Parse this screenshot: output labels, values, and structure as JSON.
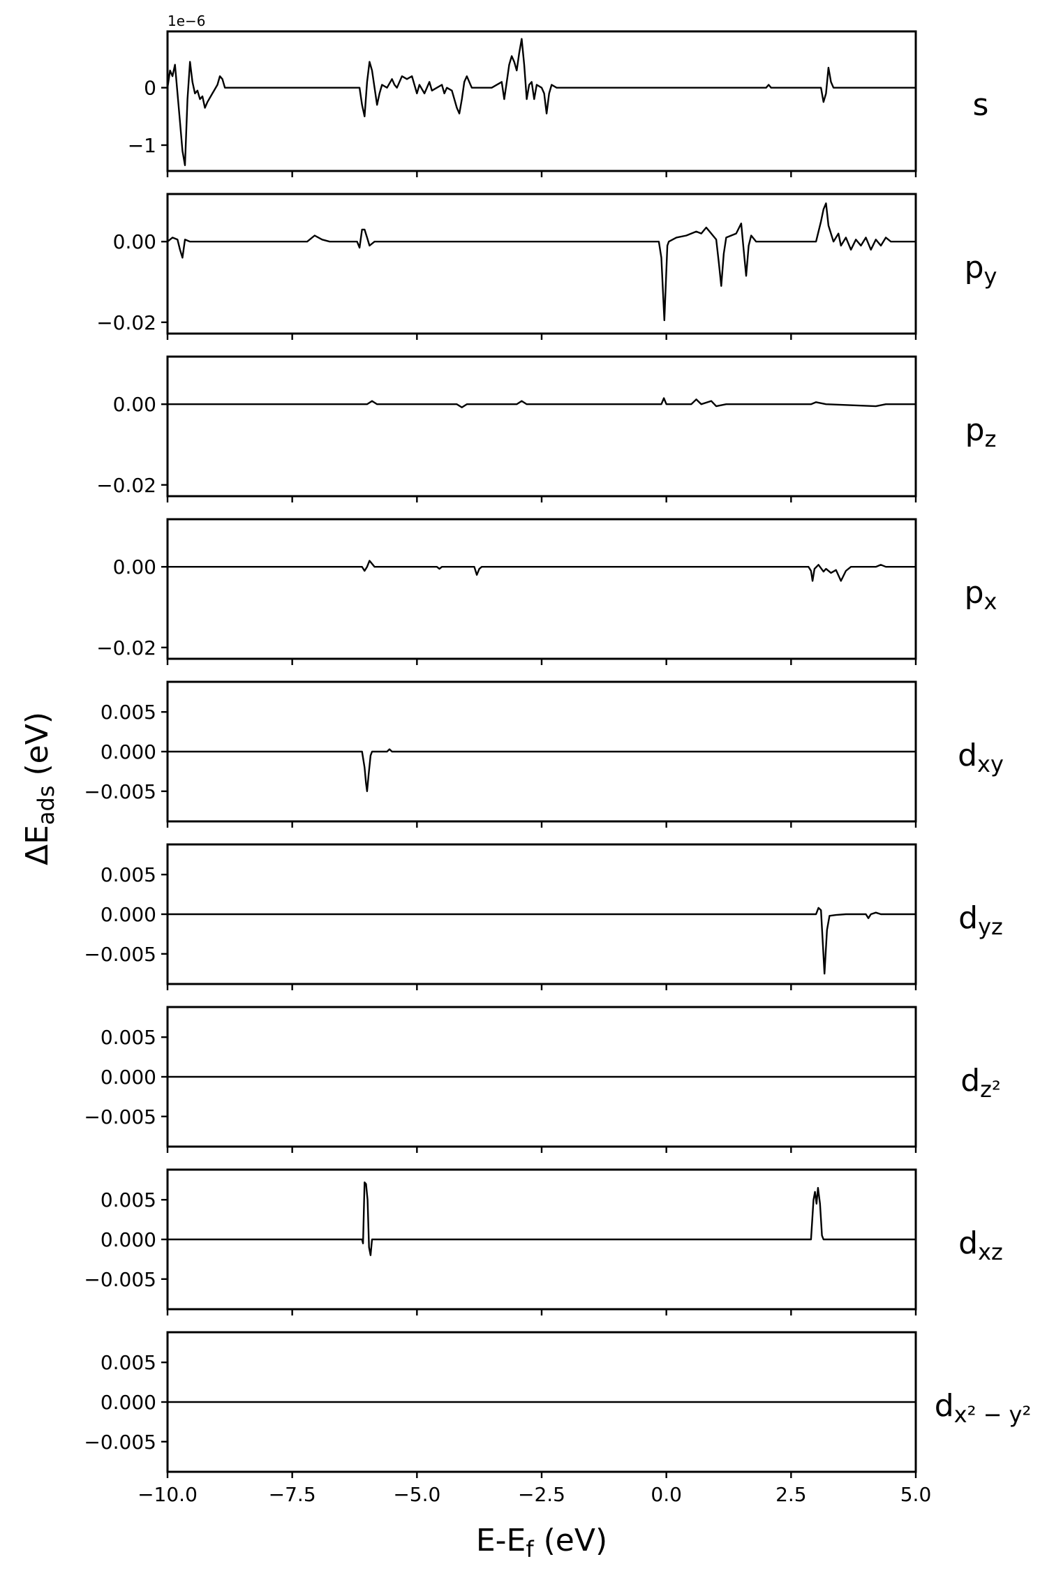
{
  "chart_data": {
    "type": "line",
    "layout": "stacked-subplots",
    "shared_x": true,
    "xlabel": {
      "main": "E-E",
      "sub": "f",
      "tail": " (eV)"
    },
    "ylabel": {
      "main": "ΔE",
      "sub": "ads",
      "tail": " (eV)"
    },
    "xlim": [
      -10.0,
      5.0
    ],
    "xticks": [
      -10.0,
      -7.5,
      -5.0,
      -2.5,
      0.0,
      2.5,
      5.0
    ],
    "xtick_labels": [
      "−10.0",
      "−7.5",
      "−5.0",
      "−2.5",
      "0.0",
      "2.5",
      "5.0"
    ],
    "line_color": "#000000",
    "panels": [
      {
        "label": {
          "main": "s",
          "sub": ""
        },
        "offset_text": "1e−6",
        "ylim": [
          -1.45,
          0.98
        ],
        "yticks": [
          0,
          -1
        ],
        "ytick_labels": [
          "0",
          "−1"
        ],
        "points": [
          [
            -10.0,
            0
          ],
          [
            -9.95,
            0.3
          ],
          [
            -9.9,
            0.2
          ],
          [
            -9.85,
            0.4
          ],
          [
            -9.8,
            -0.1
          ],
          [
            -9.75,
            -0.6
          ],
          [
            -9.7,
            -1.1
          ],
          [
            -9.65,
            -1.35
          ],
          [
            -9.6,
            -0.2
          ],
          [
            -9.55,
            0.45
          ],
          [
            -9.5,
            0.1
          ],
          [
            -9.45,
            -0.1
          ],
          [
            -9.4,
            -0.05
          ],
          [
            -9.35,
            -0.2
          ],
          [
            -9.3,
            -0.15
          ],
          [
            -9.25,
            -0.35
          ],
          [
            -9.2,
            -0.25
          ],
          [
            -9.1,
            -0.1
          ],
          [
            -9.0,
            0.05
          ],
          [
            -8.95,
            0.2
          ],
          [
            -8.9,
            0.15
          ],
          [
            -8.85,
            0
          ],
          [
            -8.5,
            0
          ],
          [
            -7.0,
            0
          ],
          [
            -6.15,
            0
          ],
          [
            -6.1,
            -0.3
          ],
          [
            -6.05,
            -0.5
          ],
          [
            -6.0,
            0.1
          ],
          [
            -5.95,
            0.45
          ],
          [
            -5.9,
            0.3
          ],
          [
            -5.85,
            0
          ],
          [
            -5.8,
            -0.3
          ],
          [
            -5.75,
            -0.1
          ],
          [
            -5.7,
            0.05
          ],
          [
            -5.6,
            0
          ],
          [
            -5.5,
            0.15
          ],
          [
            -5.45,
            0.05
          ],
          [
            -5.4,
            0
          ],
          [
            -5.3,
            0.2
          ],
          [
            -5.2,
            0.15
          ],
          [
            -5.1,
            0.2
          ],
          [
            -5.0,
            -0.1
          ],
          [
            -4.95,
            0.05
          ],
          [
            -4.85,
            -0.1
          ],
          [
            -4.75,
            0.1
          ],
          [
            -4.7,
            -0.05
          ],
          [
            -4.6,
            0
          ],
          [
            -4.5,
            0.05
          ],
          [
            -4.45,
            -0.1
          ],
          [
            -4.4,
            0
          ],
          [
            -4.3,
            -0.05
          ],
          [
            -4.2,
            -0.35
          ],
          [
            -4.15,
            -0.45
          ],
          [
            -4.1,
            -0.2
          ],
          [
            -4.05,
            0.1
          ],
          [
            -4.0,
            0.2
          ],
          [
            -3.9,
            0
          ],
          [
            -3.5,
            0
          ],
          [
            -3.3,
            0.1
          ],
          [
            -3.25,
            -0.2
          ],
          [
            -3.2,
            0.1
          ],
          [
            -3.15,
            0.4
          ],
          [
            -3.1,
            0.55
          ],
          [
            -3.05,
            0.45
          ],
          [
            -3.0,
            0.3
          ],
          [
            -2.95,
            0.6
          ],
          [
            -2.9,
            0.85
          ],
          [
            -2.85,
            0.4
          ],
          [
            -2.8,
            -0.2
          ],
          [
            -2.75,
            0.05
          ],
          [
            -2.7,
            0.1
          ],
          [
            -2.65,
            -0.2
          ],
          [
            -2.6,
            0.05
          ],
          [
            -2.5,
            0
          ],
          [
            -2.45,
            -0.1
          ],
          [
            -2.4,
            -0.45
          ],
          [
            -2.35,
            -0.1
          ],
          [
            -2.3,
            0.05
          ],
          [
            -2.2,
            0
          ],
          [
            0.0,
            0
          ],
          [
            2.0,
            0
          ],
          [
            2.05,
            0.05
          ],
          [
            2.1,
            0
          ],
          [
            3.1,
            0
          ],
          [
            3.15,
            -0.25
          ],
          [
            3.2,
            -0.1
          ],
          [
            3.25,
            0.35
          ],
          [
            3.3,
            0.1
          ],
          [
            3.35,
            0
          ],
          [
            5.0,
            0
          ]
        ]
      },
      {
        "label": {
          "main": "p",
          "sub": "y"
        },
        "offset_text": "",
        "ylim": [
          -0.0228,
          0.0118
        ],
        "yticks": [
          0.0,
          -0.02
        ],
        "ytick_labels": [
          "0.00",
          "−0.02"
        ],
        "points": [
          [
            -10.0,
            0
          ],
          [
            -9.9,
            0.001
          ],
          [
            -9.8,
            0.0005
          ],
          [
            -9.75,
            -0.002
          ],
          [
            -9.7,
            -0.004
          ],
          [
            -9.65,
            0.0005
          ],
          [
            -9.55,
            0
          ],
          [
            -9.0,
            0
          ],
          [
            -7.2,
            0
          ],
          [
            -7.05,
            0.0015
          ],
          [
            -6.9,
            0.0005
          ],
          [
            -6.75,
            0
          ],
          [
            -6.2,
            0
          ],
          [
            -6.15,
            -0.0015
          ],
          [
            -6.1,
            0.003
          ],
          [
            -6.05,
            0.003
          ],
          [
            -6.0,
            0.001
          ],
          [
            -5.95,
            -0.001
          ],
          [
            -5.85,
            0
          ],
          [
            -0.15,
            0
          ],
          [
            -0.1,
            -0.004
          ],
          [
            -0.07,
            -0.012
          ],
          [
            -0.04,
            -0.0195
          ],
          [
            -0.01,
            -0.01
          ],
          [
            0.02,
            -0.001
          ],
          [
            0.05,
            0
          ],
          [
            0.2,
            0.001
          ],
          [
            0.4,
            0.0015
          ],
          [
            0.6,
            0.0025
          ],
          [
            0.7,
            0.002
          ],
          [
            0.8,
            0.0035
          ],
          [
            0.9,
            0.002
          ],
          [
            1.0,
            0.0005
          ],
          [
            1.05,
            -0.005
          ],
          [
            1.1,
            -0.011
          ],
          [
            1.15,
            -0.003
          ],
          [
            1.2,
            0.001
          ],
          [
            1.3,
            0.0015
          ],
          [
            1.4,
            0.002
          ],
          [
            1.5,
            0.0045
          ],
          [
            1.55,
            -0.002
          ],
          [
            1.6,
            -0.0085
          ],
          [
            1.65,
            -0.001
          ],
          [
            1.7,
            0.0015
          ],
          [
            1.8,
            0
          ],
          [
            3.0,
            0
          ],
          [
            3.1,
            0.005
          ],
          [
            3.15,
            0.008
          ],
          [
            3.2,
            0.0095
          ],
          [
            3.25,
            0.004
          ],
          [
            3.35,
            0
          ],
          [
            3.45,
            0.002
          ],
          [
            3.5,
            -0.001
          ],
          [
            3.6,
            0.001
          ],
          [
            3.7,
            -0.002
          ],
          [
            3.8,
            0.0005
          ],
          [
            3.9,
            -0.001
          ],
          [
            4.0,
            0.001
          ],
          [
            4.1,
            -0.002
          ],
          [
            4.2,
            0.0005
          ],
          [
            4.3,
            -0.001
          ],
          [
            4.4,
            0.001
          ],
          [
            4.5,
            0
          ],
          [
            5.0,
            0
          ]
        ]
      },
      {
        "label": {
          "main": "p",
          "sub": "z"
        },
        "offset_text": "",
        "ylim": [
          -0.0228,
          0.0118
        ],
        "yticks": [
          0.0,
          -0.02
        ],
        "ytick_labels": [
          "0.00",
          "−0.02"
        ],
        "points": [
          [
            -10.0,
            0
          ],
          [
            -9.0,
            0
          ],
          [
            -6.0,
            0
          ],
          [
            -5.9,
            0.0008
          ],
          [
            -5.8,
            0
          ],
          [
            -4.2,
            0
          ],
          [
            -4.1,
            -0.0008
          ],
          [
            -4.0,
            0
          ],
          [
            -3.0,
            0
          ],
          [
            -2.9,
            0.0008
          ],
          [
            -2.8,
            0
          ],
          [
            -0.1,
            0
          ],
          [
            -0.05,
            0.0015
          ],
          [
            0.0,
            0
          ],
          [
            0.5,
            0
          ],
          [
            0.6,
            0.0012
          ],
          [
            0.7,
            0
          ],
          [
            0.9,
            0.0008
          ],
          [
            1.0,
            -0.0005
          ],
          [
            1.2,
            0
          ],
          [
            2.9,
            0
          ],
          [
            3.0,
            0.0005
          ],
          [
            3.2,
            0
          ],
          [
            4.2,
            -0.0005
          ],
          [
            4.4,
            0
          ],
          [
            5.0,
            0
          ]
        ]
      },
      {
        "label": {
          "main": "p",
          "sub": "x"
        },
        "offset_text": "",
        "ylim": [
          -0.0228,
          0.0118
        ],
        "yticks": [
          0.0,
          -0.02
        ],
        "ytick_labels": [
          "0.00",
          "−0.02"
        ],
        "points": [
          [
            -10.0,
            0
          ],
          [
            -6.1,
            0
          ],
          [
            -6.05,
            -0.001
          ],
          [
            -6.0,
            0
          ],
          [
            -5.95,
            0.0015
          ],
          [
            -5.85,
            0
          ],
          [
            -4.6,
            0
          ],
          [
            -4.55,
            -0.0005
          ],
          [
            -4.5,
            0
          ],
          [
            -3.85,
            0
          ],
          [
            -3.8,
            -0.002
          ],
          [
            -3.75,
            -0.0005
          ],
          [
            -3.7,
            0
          ],
          [
            2.85,
            0
          ],
          [
            2.9,
            -0.001
          ],
          [
            2.93,
            -0.0035
          ],
          [
            2.97,
            -0.0005
          ],
          [
            3.05,
            0.0005
          ],
          [
            3.15,
            -0.0012
          ],
          [
            3.2,
            -0.0005
          ],
          [
            3.3,
            -0.0015
          ],
          [
            3.4,
            -0.0008
          ],
          [
            3.5,
            -0.0035
          ],
          [
            3.6,
            -0.001
          ],
          [
            3.7,
            0
          ],
          [
            4.2,
            0
          ],
          [
            4.3,
            0.0005
          ],
          [
            4.4,
            0
          ],
          [
            5.0,
            0
          ]
        ]
      },
      {
        "label": {
          "main": "d",
          "sub": "xy"
        },
        "offset_text": "",
        "ylim": [
          -0.0088,
          0.0088
        ],
        "yticks": [
          0.005,
          0.0,
          -0.005
        ],
        "ytick_labels": [
          "0.005",
          "0.000",
          "−0.005"
        ],
        "points": [
          [
            -10.0,
            0
          ],
          [
            -6.1,
            0
          ],
          [
            -6.05,
            -0.002
          ],
          [
            -6.02,
            -0.004
          ],
          [
            -6.0,
            -0.005
          ],
          [
            -5.97,
            -0.003
          ],
          [
            -5.93,
            -0.0005
          ],
          [
            -5.9,
            0
          ],
          [
            -5.6,
            0
          ],
          [
            -5.55,
            0.0003
          ],
          [
            -5.5,
            0
          ],
          [
            5.0,
            0
          ]
        ]
      },
      {
        "label": {
          "main": "d",
          "sub": "yz"
        },
        "offset_text": "",
        "ylim": [
          -0.0088,
          0.0088
        ],
        "yticks": [
          0.005,
          0.0,
          -0.005
        ],
        "ytick_labels": [
          "0.005",
          "0.000",
          "−0.005"
        ],
        "points": [
          [
            -10.0,
            0
          ],
          [
            3.0,
            0
          ],
          [
            3.05,
            0.0008
          ],
          [
            3.1,
            0.0005
          ],
          [
            3.13,
            -0.003
          ],
          [
            3.17,
            -0.0075
          ],
          [
            3.22,
            -0.002
          ],
          [
            3.27,
            -0.0002
          ],
          [
            3.4,
            -0.0001
          ],
          [
            3.6,
            0
          ],
          [
            4.0,
            0
          ],
          [
            4.05,
            -0.0005
          ],
          [
            4.1,
            0
          ],
          [
            4.2,
            0.0002
          ],
          [
            4.3,
            0
          ],
          [
            5.0,
            0
          ]
        ]
      },
      {
        "label": {
          "main": "d",
          "sub": "z²"
        },
        "offset_text": "",
        "ylim": [
          -0.0088,
          0.0088
        ],
        "yticks": [
          0.005,
          0.0,
          -0.005
        ],
        "ytick_labels": [
          "0.005",
          "0.000",
          "−0.005"
        ],
        "points": [
          [
            -10.0,
            0
          ],
          [
            5.0,
            0
          ]
        ]
      },
      {
        "label": {
          "main": "d",
          "sub": "xz"
        },
        "offset_text": "",
        "ylim": [
          -0.0088,
          0.0088
        ],
        "yticks": [
          0.005,
          0.0,
          -0.005
        ],
        "ytick_labels": [
          "0.005",
          "0.000",
          "−0.005"
        ],
        "points": [
          [
            -10.0,
            0
          ],
          [
            -6.1,
            0
          ],
          [
            -6.08,
            -0.0005
          ],
          [
            -6.05,
            0.0072
          ],
          [
            -6.02,
            0.007
          ],
          [
            -5.99,
            0.005
          ],
          [
            -5.96,
            -0.001
          ],
          [
            -5.93,
            -0.002
          ],
          [
            -5.9,
            0
          ],
          [
            2.9,
            0
          ],
          [
            2.95,
            0.005
          ],
          [
            2.98,
            0.006
          ],
          [
            3.01,
            0.0045
          ],
          [
            3.04,
            0.0065
          ],
          [
            3.08,
            0.0045
          ],
          [
            3.12,
            0.0005
          ],
          [
            3.15,
            0
          ],
          [
            5.0,
            0
          ]
        ]
      },
      {
        "label": {
          "main": "d",
          "sub": "x² − y²"
        },
        "offset_text": "",
        "ylim": [
          -0.0088,
          0.0088
        ],
        "yticks": [
          0.005,
          0.0,
          -0.005
        ],
        "ytick_labels": [
          "0.005",
          "0.000",
          "−0.005"
        ],
        "points": [
          [
            -10.0,
            0
          ],
          [
            5.0,
            0
          ]
        ]
      }
    ]
  }
}
